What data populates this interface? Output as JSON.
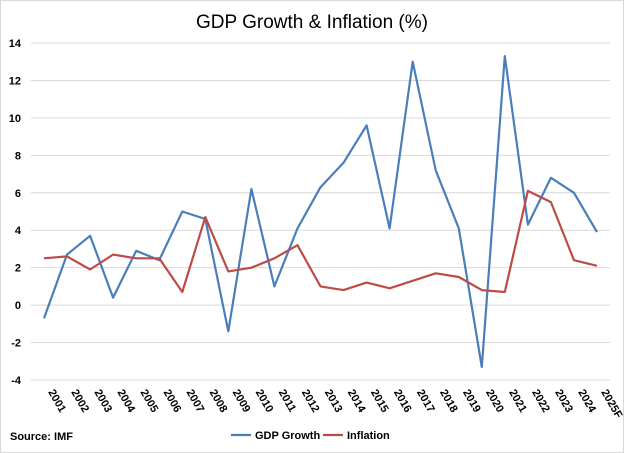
{
  "chart_data": {
    "type": "line",
    "title": "GDP Growth & Inflation (%)",
    "source": "Source: IMF",
    "xlabel": "",
    "ylabel": "",
    "ylim": [
      -4,
      14
    ],
    "yticks": [
      -4,
      -2,
      0,
      2,
      4,
      6,
      8,
      10,
      12,
      14
    ],
    "grid": true,
    "legend": "bottom",
    "categories": [
      "2001",
      "2002",
      "2003",
      "2004",
      "2005",
      "2006",
      "2007",
      "2008",
      "2009",
      "2010",
      "2011",
      "2012",
      "2013",
      "2014",
      "2015",
      "2016",
      "2017",
      "2018",
      "2019",
      "2020",
      "2021",
      "2022",
      "2023",
      "2024",
      "2025F"
    ],
    "series": [
      {
        "name": "GDP Growth",
        "color": "#4a7ebb",
        "values": [
          -0.7,
          2.7,
          3.7,
          0.4,
          2.9,
          2.4,
          5.0,
          4.6,
          -1.4,
          6.2,
          1.0,
          4.1,
          6.3,
          7.6,
          9.6,
          4.1,
          13.0,
          7.2,
          4.1,
          -3.3,
          13.3,
          4.3,
          6.8,
          6.0,
          3.9
        ]
      },
      {
        "name": "Inflation",
        "color": "#be4b48",
        "values": [
          2.5,
          2.6,
          1.9,
          2.7,
          2.5,
          2.5,
          0.7,
          4.7,
          1.8,
          2.0,
          2.5,
          3.2,
          1.0,
          0.8,
          1.2,
          0.9,
          1.3,
          1.7,
          1.5,
          0.8,
          0.7,
          6.1,
          5.5,
          2.4,
          2.1
        ]
      }
    ]
  }
}
